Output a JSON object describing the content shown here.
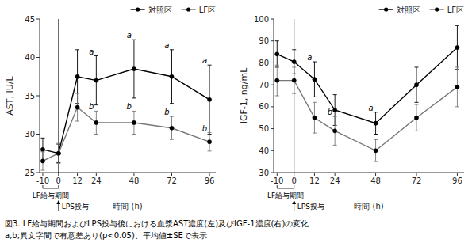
{
  "chart_data": [
    {
      "type": "line",
      "x": [
        -10,
        0,
        12,
        24,
        48,
        72,
        96
      ],
      "xlim": [
        -12,
        100
      ],
      "xticks": [
        -10,
        0,
        12,
        24,
        48,
        72,
        96
      ],
      "x_label": "時間 (h)",
      "ylim": [
        25,
        45
      ],
      "yticks": [
        25,
        30,
        35,
        40,
        45
      ],
      "y_label": "AST, IU/L",
      "grid": false,
      "legend": "top",
      "series": [
        {
          "name": "対照区",
          "color": "#000000",
          "marker": "circle",
          "values": [
            28.0,
            27.5,
            37.5,
            37.0,
            38.5,
            37.5,
            34.5
          ],
          "errors": [
            1.5,
            1.2,
            3.5,
            3.2,
            3.8,
            3.5,
            4.5
          ]
        },
        {
          "name": "LF区",
          "color": "#777777",
          "marker": "circle",
          "values": [
            26.5,
            27.5,
            33.5,
            31.5,
            31.5,
            30.8,
            29.0
          ],
          "errors": [
            1.2,
            1.3,
            1.8,
            1.5,
            1.5,
            1.5,
            1.2
          ]
        }
      ],
      "annotations": [
        {
          "x": 0,
          "line": true
        },
        {
          "text": "a",
          "x": 24,
          "series": 0
        },
        {
          "text": "b",
          "x": 24,
          "series": 1
        },
        {
          "text": "a",
          "x": 48,
          "series": 0
        },
        {
          "text": "b",
          "x": 48,
          "series": 1
        },
        {
          "text": "a",
          "x": 72,
          "series": 0
        },
        {
          "text": "b",
          "x": 72,
          "series": 1
        },
        {
          "text": "a",
          "x": 96,
          "series": 0
        },
        {
          "text": "b",
          "x": 96,
          "series": 1
        },
        {
          "text": "LF給与期間",
          "x_start": -10,
          "x_end": 0
        },
        {
          "text": "LPS投与",
          "x": 0,
          "arrow": true
        }
      ]
    },
    {
      "type": "line",
      "x": [
        -10,
        0,
        12,
        24,
        48,
        72,
        96
      ],
      "xlim": [
        -12,
        100
      ],
      "xticks": [
        -10,
        0,
        12,
        24,
        48,
        72,
        96
      ],
      "x_label": "時間 (h)",
      "ylim": [
        30,
        100
      ],
      "yticks": [
        30,
        40,
        50,
        60,
        70,
        80,
        90,
        100
      ],
      "y_label": "IGF-1, ng/mL",
      "grid": false,
      "legend": "top",
      "series": [
        {
          "name": "対照区",
          "color": "#000000",
          "marker": "circle",
          "values": [
            84.0,
            80.5,
            72.5,
            58.5,
            52.5,
            70.0,
            87.0
          ],
          "errors": [
            6.0,
            5.5,
            8.0,
            7.0,
            5.0,
            8.0,
            10.0
          ]
        },
        {
          "name": "LF区",
          "color": "#777777",
          "marker": "circle",
          "values": [
            72.0,
            72.0,
            55.0,
            49.0,
            40.0,
            55.0,
            69.0
          ],
          "errors": [
            7.0,
            6.0,
            7.0,
            6.5,
            5.0,
            6.0,
            9.0
          ]
        }
      ],
      "annotations": [
        {
          "x": 0,
          "line": true
        },
        {
          "text": "a",
          "x": 12,
          "series": 0
        },
        {
          "text": "b",
          "x": 24,
          "series": 1
        },
        {
          "text": "a",
          "x": 48,
          "series": 0
        },
        {
          "text": "LF給与期間",
          "x_start": -10,
          "x_end": 0
        },
        {
          "text": "LPS投与",
          "x": 0,
          "arrow": true
        }
      ]
    }
  ],
  "caption": [
    "図3. LF給与期間およびLPS投与後における血漿AST濃度(左)及びIGF-1濃度(右)の変化",
    "a,b;異文字間で有意差あり(p<0.05)、平均値±SEで表示"
  ]
}
